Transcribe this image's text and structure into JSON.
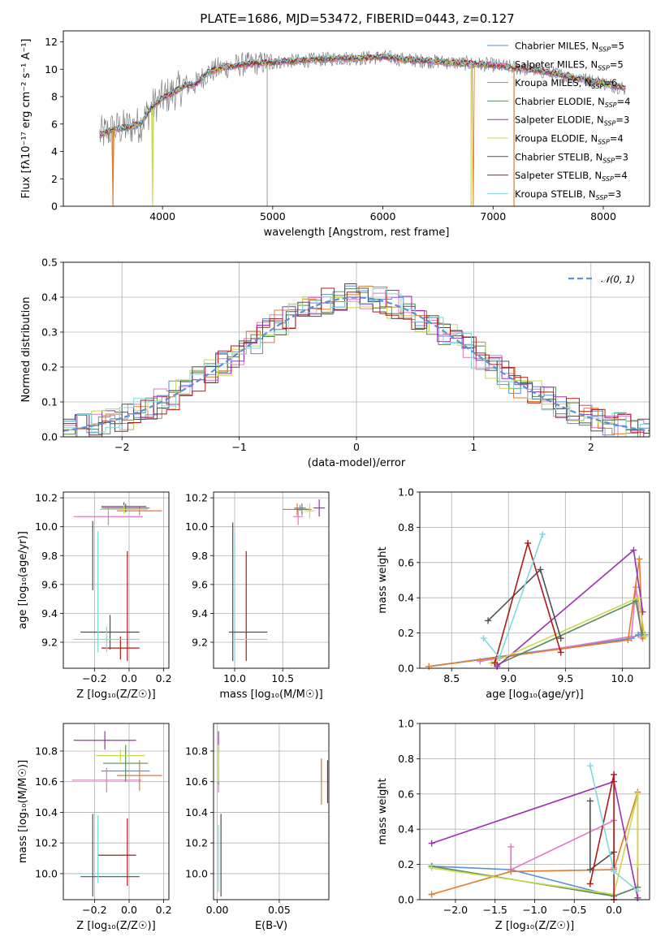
{
  "title": "PLATE=1686, MJD=53472, FIBERID=0443, z=0.127",
  "colors": {
    "grid": "#b0b0b0",
    "spectrum": "#808080",
    "gauss": "#5b8fd6"
  },
  "series": [
    {
      "label": "Chabrier MILES, N_SSP=5",
      "name": "Chabrier MILES",
      "nssp": 5,
      "color": "#5b8fd6"
    },
    {
      "label": "Salpeter MILES, N_SSP=5",
      "name": "Salpeter MILES",
      "nssp": 5,
      "color": "#e377c2"
    },
    {
      "label": "Kroupa MILES, N_SSP=6",
      "name": "Kroupa MILES",
      "nssp": 6,
      "color": "#e07b2c"
    },
    {
      "label": "Chabrier ELODIE, N_SSP=4",
      "name": "Chabrier ELODIE",
      "nssp": 4,
      "color": "#5a8a5a"
    },
    {
      "label": "Salpeter ELODIE, N_SSP=3",
      "name": "Salpeter ELODIE",
      "nssp": 3,
      "color": "#9b30b0"
    },
    {
      "label": "Kroupa ELODIE, N_SSP=4",
      "name": "Kroupa ELODIE",
      "nssp": 4,
      "color": "#c8d94a"
    },
    {
      "label": "Chabrier STELIB, N_SSP=3",
      "name": "Chabrier STELIB",
      "nssp": 3,
      "color": "#505050"
    },
    {
      "label": "Salpeter STELIB, N_SSP=4",
      "name": "Salpeter STELIB",
      "nssp": 4,
      "color": "#b01818"
    },
    {
      "label": "Kroupa STELIB, N_SSP=3",
      "name": "Kroupa STELIB",
      "nssp": 3,
      "color": "#80d8e0"
    }
  ],
  "chart_data": [
    {
      "id": "spectrum",
      "type": "line",
      "xlabel": "wavelength [Angstrom, rest frame]",
      "ylabel": "Flux [fλ10⁻¹⁷ erg cm⁻² s⁻¹ A⁻¹]",
      "xlim": [
        3100,
        8420
      ],
      "ylim": [
        0,
        12.8
      ],
      "xticks": [
        4000,
        5000,
        6000,
        7000,
        8000
      ],
      "yticks": [
        0,
        2,
        4,
        6,
        8,
        10,
        12
      ],
      "grid": false,
      "legend": "right",
      "continuum": [
        [
          3430,
          5.2
        ],
        [
          3550,
          5.6
        ],
        [
          3700,
          5.8
        ],
        [
          3800,
          6.0
        ],
        [
          3900,
          7.2
        ],
        [
          4000,
          7.9
        ],
        [
          4100,
          8.3
        ],
        [
          4200,
          8.8
        ],
        [
          4300,
          8.9
        ],
        [
          4400,
          9.7
        ],
        [
          4500,
          10.0
        ],
        [
          4600,
          10.2
        ],
        [
          4700,
          10.3
        ],
        [
          4800,
          10.4
        ],
        [
          5000,
          10.5
        ],
        [
          5200,
          10.6
        ],
        [
          5400,
          10.7
        ],
        [
          5600,
          10.8
        ],
        [
          5800,
          10.8
        ],
        [
          6000,
          10.9
        ],
        [
          6200,
          10.7
        ],
        [
          6400,
          10.6
        ],
        [
          6600,
          10.5
        ],
        [
          6800,
          10.4
        ],
        [
          7000,
          10.3
        ],
        [
          7200,
          10.1
        ],
        [
          7400,
          9.9
        ],
        [
          7600,
          9.6
        ],
        [
          7800,
          9.3
        ],
        [
          8000,
          9.0
        ],
        [
          8100,
          8.8
        ],
        [
          8200,
          8.6
        ]
      ]
    },
    {
      "id": "residuals",
      "type": "line",
      "xlabel": "(data-model)/error",
      "ylabel": "Normed distribution",
      "xlim": [
        -2.5,
        2.5
      ],
      "ylim": [
        0,
        0.5
      ],
      "xticks": [
        -2,
        -1,
        0,
        1,
        2
      ],
      "yticks": [
        0.0,
        0.1,
        0.2,
        0.3,
        0.4,
        0.5
      ],
      "grid": true,
      "legend": "top-right",
      "reference": {
        "label": "𝒩(0, 1)",
        "mu": 0,
        "sigma": 1
      }
    },
    {
      "id": "age-vs-Z",
      "type": "scatter",
      "xlabel": "Z [log₁₀(Z/Z☉)]",
      "ylabel": "age  [log₁₀(age/yr)]",
      "xlim": [
        -0.38,
        0.23
      ],
      "ylim": [
        9.02,
        10.24
      ],
      "xticks": [
        -0.2,
        0.0,
        0.2
      ],
      "yticks": [
        9.2,
        9.4,
        9.6,
        9.8,
        10.0,
        10.2
      ],
      "grid": true,
      "points": [
        {
          "s": 0,
          "x": -0.02,
          "y": 10.13,
          "xe": 0.14,
          "ye": 0.02
        },
        {
          "s": 1,
          "x": -0.12,
          "y": 10.07,
          "xe": 0.2,
          "ye": 0.06
        },
        {
          "s": 2,
          "x": 0.06,
          "y": 10.11,
          "xe": 0.13,
          "ye": 0.03
        },
        {
          "s": 3,
          "x": -0.02,
          "y": 10.13,
          "xe": 0.13,
          "ye": 0.03
        },
        {
          "s": 4,
          "x": -0.03,
          "y": 10.14,
          "xe": 0.13,
          "ye": 0.03
        },
        {
          "s": 5,
          "x": -0.03,
          "y": 10.12,
          "xe": 0.14,
          "ye": 0.03
        },
        {
          "s": 6,
          "x": -0.11,
          "y": 9.27,
          "xe": 0.17,
          "ye": 0.12
        },
        {
          "s": 7,
          "x": -0.05,
          "y": 9.16,
          "xe": 0.11,
          "ye": 0.08
        },
        {
          "s": 8,
          "x": -0.13,
          "y": 9.22,
          "xe": 0.19,
          "ye": 0.09
        },
        {
          "s": 6,
          "x": -0.21,
          "y": 9.8,
          "xe": 0.0,
          "ye": 0.24
        },
        {
          "s": 7,
          "x": -0.01,
          "y": 9.45,
          "xe": 0.0,
          "ye": 0.38
        },
        {
          "s": 8,
          "x": -0.18,
          "y": 9.55,
          "xe": 0.0,
          "ye": 0.42
        }
      ]
    },
    {
      "id": "age-vs-mass",
      "type": "scatter",
      "xlabel": "mass [log₁₀(M/M☉)]",
      "ylabel": "",
      "xlim": [
        9.78,
        10.98
      ],
      "ylim": [
        9.02,
        10.24
      ],
      "xticks": [
        10.0,
        10.5
      ],
      "yticks": [
        9.2,
        9.4,
        9.6,
        9.8,
        10.0,
        10.2
      ],
      "grid": true,
      "points": [
        {
          "s": 0,
          "x": 10.68,
          "y": 10.13,
          "xe": 0.06,
          "ye": 0.02
        },
        {
          "s": 1,
          "x": 10.66,
          "y": 10.07,
          "xe": 0.05,
          "ye": 0.06
        },
        {
          "s": 2,
          "x": 10.65,
          "y": 10.12,
          "xe": 0.15,
          "ye": 0.04
        },
        {
          "s": 3,
          "x": 10.7,
          "y": 10.12,
          "xe": 0.08,
          "ye": 0.04
        },
        {
          "s": 4,
          "x": 10.88,
          "y": 10.13,
          "xe": 0.06,
          "ye": 0.06
        },
        {
          "s": 5,
          "x": 10.78,
          "y": 10.11,
          "xe": 0.05,
          "ye": 0.05
        },
        {
          "s": 6,
          "x": 9.98,
          "y": 9.55,
          "xe": 0.0,
          "ye": 0.48
        },
        {
          "s": 7,
          "x": 10.12,
          "y": 9.45,
          "xe": 0.0,
          "ye": 0.38
        },
        {
          "s": 8,
          "x": 10.0,
          "y": 9.5,
          "xe": 0.0,
          "ye": 0.45
        },
        {
          "s": 6,
          "x": 10.14,
          "y": 9.27,
          "xe": 0.2,
          "ye": 0.0
        },
        {
          "s": 8,
          "x": 10.16,
          "y": 9.22,
          "xe": 0.18,
          "ye": 0.0
        }
      ]
    },
    {
      "id": "mass-weight-vs-age",
      "type": "line",
      "xlabel": "age  [log₁₀(age/yr)]",
      "ylabel": "mass weight",
      "xlim": [
        8.22,
        10.24
      ],
      "ylim": [
        0,
        1.0
      ],
      "xticks": [
        8.5,
        9.0,
        9.5,
        10.0
      ],
      "yticks": [
        0.0,
        0.2,
        0.4,
        0.6,
        0.8,
        1.0
      ],
      "grid": true,
      "lines": [
        {
          "s": 0,
          "pts": [
            [
              8.3,
              0.01
            ],
            [
              10.08,
              0.17
            ],
            [
              10.14,
              0.19
            ],
            [
              10.2,
              0.19
            ]
          ]
        },
        {
          "s": 1,
          "pts": [
            [
              8.75,
              0.04
            ],
            [
              10.08,
              0.18
            ],
            [
              10.12,
              0.46
            ],
            [
              10.17,
              0.18
            ]
          ]
        },
        {
          "s": 2,
          "pts": [
            [
              8.3,
              0.01
            ],
            [
              10.05,
              0.16
            ],
            [
              10.15,
              0.62
            ],
            [
              10.18,
              0.17
            ]
          ]
        },
        {
          "s": 3,
          "pts": [
            [
              8.9,
              0.02
            ],
            [
              10.12,
              0.38
            ],
            [
              10.17,
              0.2
            ]
          ]
        },
        {
          "s": 4,
          "pts": [
            [
              8.9,
              0.01
            ],
            [
              10.1,
              0.67
            ],
            [
              10.18,
              0.32
            ]
          ]
        },
        {
          "s": 5,
          "pts": [
            [
              8.85,
              0.03
            ],
            [
              10.14,
              0.4
            ],
            [
              10.2,
              0.18
            ]
          ]
        },
        {
          "s": 6,
          "pts": [
            [
              8.82,
              0.27
            ],
            [
              9.28,
              0.56
            ],
            [
              9.46,
              0.17
            ]
          ]
        },
        {
          "s": 7,
          "pts": [
            [
              8.88,
              0.03
            ],
            [
              9.17,
              0.71
            ],
            [
              9.46,
              0.09
            ]
          ]
        },
        {
          "s": 8,
          "pts": [
            [
              8.78,
              0.17
            ],
            [
              8.92,
              0.06
            ],
            [
              9.3,
              0.76
            ]
          ]
        }
      ]
    },
    {
      "id": "mass-vs-Z",
      "type": "scatter",
      "xlabel": "Z [log₁₀(Z/Z☉)]",
      "ylabel": "mass [log₁₀(M/M☉)]",
      "xlim": [
        -0.38,
        0.23
      ],
      "ylim": [
        9.83,
        10.98
      ],
      "xticks": [
        -0.2,
        0.0,
        0.2
      ],
      "yticks": [
        10.0,
        10.2,
        10.4,
        10.6,
        10.8
      ],
      "grid": true,
      "points": [
        {
          "s": 0,
          "x": -0.02,
          "y": 10.67,
          "xe": 0.14,
          "ye": 0.0
        },
        {
          "s": 1,
          "x": -0.13,
          "y": 10.61,
          "xe": 0.2,
          "ye": 0.08
        },
        {
          "s": 2,
          "x": 0.06,
          "y": 10.64,
          "xe": 0.13,
          "ye": 0.1
        },
        {
          "s": 3,
          "x": -0.02,
          "y": 10.72,
          "xe": 0.13,
          "ye": 0.12
        },
        {
          "s": 4,
          "x": -0.14,
          "y": 10.87,
          "xe": 0.18,
          "ye": 0.06
        },
        {
          "s": 5,
          "x": -0.05,
          "y": 10.77,
          "xe": 0.14,
          "ye": 0.04
        },
        {
          "s": 6,
          "x": -0.11,
          "y": 9.98,
          "xe": 0.17,
          "ye": 0.0
        },
        {
          "s": 7,
          "x": -0.07,
          "y": 10.12,
          "xe": 0.11,
          "ye": 0.0
        },
        {
          "s": 8,
          "x": -0.13,
          "y": 10.0,
          "xe": 0.19,
          "ye": 0.0
        },
        {
          "s": 6,
          "x": -0.21,
          "y": 10.12,
          "xe": 0.0,
          "ye": 0.27
        },
        {
          "s": 7,
          "x": -0.01,
          "y": 10.14,
          "xe": 0.0,
          "ye": 0.22
        },
        {
          "s": 8,
          "x": -0.18,
          "y": 10.16,
          "xe": 0.0,
          "ye": 0.22
        }
      ]
    },
    {
      "id": "mass-vs-ebv",
      "type": "scatter",
      "xlabel": "E(B-V)",
      "ylabel": "",
      "xlim": [
        -0.003,
        0.09
      ],
      "ylim": [
        9.83,
        10.98
      ],
      "xticks": [
        0.0,
        0.05
      ],
      "yticks": [
        10.0,
        10.2,
        10.4,
        10.6,
        10.8
      ],
      "grid": true,
      "points": [
        {
          "s": 0,
          "x": 0.084,
          "y": 10.67,
          "xe": 0.0,
          "ye": 0.08
        },
        {
          "s": 1,
          "x": 0.001,
          "y": 10.61,
          "xe": 0.0,
          "ye": 0.08
        },
        {
          "s": 2,
          "x": 0.084,
          "y": 10.6,
          "xe": 0.0,
          "ye": 0.15
        },
        {
          "s": 3,
          "x": 0.001,
          "y": 10.7,
          "xe": 0.0,
          "ye": 0.12
        },
        {
          "s": 4,
          "x": 0.001,
          "y": 10.85,
          "xe": 0.0,
          "ye": 0.08
        },
        {
          "s": 5,
          "x": 0.001,
          "y": 10.72,
          "xe": 0.0,
          "ye": 0.12
        },
        {
          "s": 6,
          "x": 0.003,
          "y": 10.12,
          "xe": 0.0,
          "ye": 0.27
        },
        {
          "s": 7,
          "x": 0.089,
          "y": 10.6,
          "xe": 0.0,
          "ye": 0.14
        },
        {
          "s": 8,
          "x": 0.001,
          "y": 10.1,
          "xe": 0.0,
          "ye": 0.22
        }
      ]
    },
    {
      "id": "mass-weight-vs-Z",
      "type": "line",
      "xlabel": "Z [log₁₀(Z/Z☉)]",
      "ylabel": "mass weight",
      "xlim": [
        -2.45,
        0.45
      ],
      "ylim": [
        0,
        1.0
      ],
      "xticks": [
        -2.0,
        -1.5,
        -1.0,
        -0.5,
        0.0
      ],
      "yticks": [
        0.0,
        0.2,
        0.4,
        0.6,
        0.8,
        1.0
      ],
      "grid": true,
      "lines": [
        {
          "s": 0,
          "pts": [
            [
              -2.3,
              0.19
            ],
            [
              -1.3,
              0.17
            ],
            [
              0.0,
              0.02
            ],
            [
              0.3,
              0.07
            ]
          ]
        },
        {
          "s": 1,
          "pts": [
            [
              -1.3,
              0.3
            ],
            [
              -1.3,
              0.17
            ],
            [
              0.0,
              0.45
            ],
            [
              0.0,
              0.18
            ]
          ]
        },
        {
          "s": 2,
          "pts": [
            [
              -2.3,
              0.03
            ],
            [
              -1.3,
              0.16
            ],
            [
              0.0,
              0.17
            ],
            [
              0.3,
              0.61
            ],
            [
              0.3,
              0.01
            ]
          ]
        },
        {
          "s": 3,
          "pts": [
            [
              -2.3,
              0.19
            ],
            [
              0.0,
              0.02
            ],
            [
              0.3,
              0.07
            ]
          ]
        },
        {
          "s": 4,
          "pts": [
            [
              -2.3,
              0.32
            ],
            [
              0.0,
              0.67
            ],
            [
              0.3,
              0.01
            ]
          ]
        },
        {
          "s": 5,
          "pts": [
            [
              -2.3,
              0.18
            ],
            [
              0.0,
              0.03
            ],
            [
              0.3,
              0.6
            ],
            [
              0.3,
              0.2
            ]
          ]
        },
        {
          "s": 6,
          "pts": [
            [
              -0.3,
              0.56
            ],
            [
              -0.3,
              0.17
            ],
            [
              0.0,
              0.27
            ]
          ]
        },
        {
          "s": 7,
          "pts": [
            [
              -0.3,
              0.09
            ],
            [
              0.0,
              0.71
            ],
            [
              0.0,
              0.0
            ]
          ]
        },
        {
          "s": 8,
          "pts": [
            [
              -0.3,
              0.76
            ],
            [
              0.0,
              0.16
            ],
            [
              0.3,
              0.05
            ]
          ]
        }
      ]
    }
  ]
}
